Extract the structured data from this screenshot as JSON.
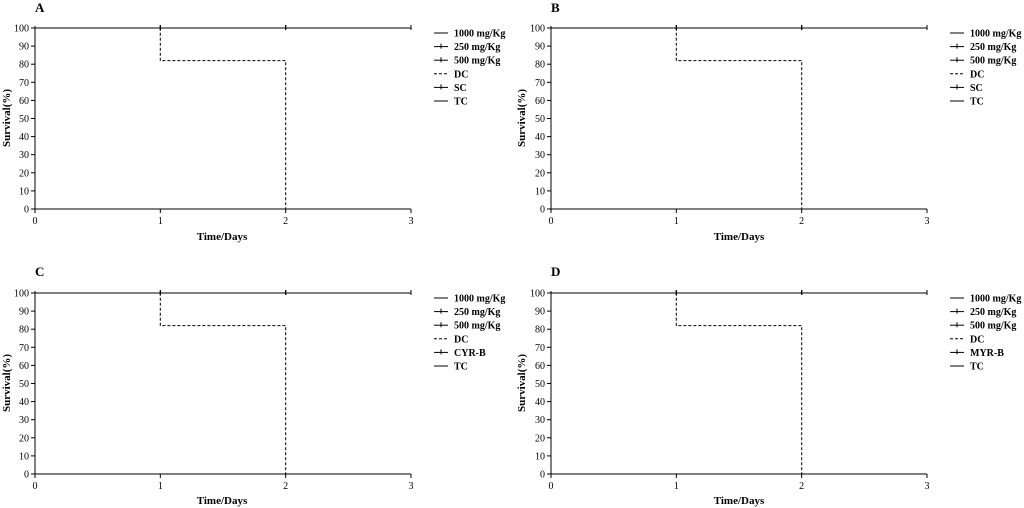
{
  "chart_data": [
    {
      "type": "line",
      "panel": "A",
      "xlabel": "Time/Days",
      "ylabel": "Survival(%)",
      "xlim": [
        0,
        3
      ],
      "ylim": [
        0,
        100
      ],
      "xticks": [
        0,
        1,
        2,
        3
      ],
      "yticks": [
        0,
        10,
        20,
        30,
        40,
        50,
        60,
        70,
        80,
        90,
        100
      ],
      "legend_position": "right",
      "series": [
        {
          "name": "1000 mg/Kg",
          "style": "solid",
          "x": [
            0,
            3
          ],
          "y": [
            100,
            100
          ]
        },
        {
          "name": "250 mg/Kg",
          "style": "solid-ticked",
          "x": [
            0,
            3
          ],
          "y": [
            100,
            100
          ]
        },
        {
          "name": "500 mg/Kg",
          "style": "solid-ticked",
          "x": [
            0,
            3
          ],
          "y": [
            100,
            100
          ]
        },
        {
          "name": "DC",
          "style": "dashed",
          "x": [
            0,
            1,
            1,
            2,
            2
          ],
          "y": [
            100,
            100,
            82,
            82,
            0
          ]
        },
        {
          "name": "SC",
          "style": "solid-ticked",
          "x": [
            0,
            3
          ],
          "y": [
            100,
            100
          ]
        },
        {
          "name": "TC",
          "style": "solid",
          "x": [
            0,
            3
          ],
          "y": [
            100,
            100
          ]
        }
      ]
    },
    {
      "type": "line",
      "panel": "B",
      "xlabel": "Time/Days",
      "ylabel": "Survival(%)",
      "xlim": [
        0,
        3
      ],
      "ylim": [
        0,
        100
      ],
      "xticks": [
        0,
        1,
        2,
        3
      ],
      "yticks": [
        0,
        10,
        20,
        30,
        40,
        50,
        60,
        70,
        80,
        90,
        100
      ],
      "legend_position": "right",
      "series": [
        {
          "name": "1000 mg/Kg",
          "style": "solid",
          "x": [
            0,
            3
          ],
          "y": [
            100,
            100
          ]
        },
        {
          "name": "250 mg/Kg",
          "style": "solid-ticked",
          "x": [
            0,
            3
          ],
          "y": [
            100,
            100
          ]
        },
        {
          "name": "500 mg/Kg",
          "style": "solid-ticked",
          "x": [
            0,
            3
          ],
          "y": [
            100,
            100
          ]
        },
        {
          "name": "DC",
          "style": "dashed",
          "x": [
            0,
            1,
            1,
            2,
            2
          ],
          "y": [
            100,
            100,
            82,
            82,
            0
          ]
        },
        {
          "name": "SC",
          "style": "solid-ticked",
          "x": [
            0,
            3
          ],
          "y": [
            100,
            100
          ]
        },
        {
          "name": "TC",
          "style": "solid",
          "x": [
            0,
            3
          ],
          "y": [
            100,
            100
          ]
        }
      ]
    },
    {
      "type": "line",
      "panel": "C",
      "xlabel": "Time/Days",
      "ylabel": "Survival(%)",
      "xlim": [
        0,
        3
      ],
      "ylim": [
        0,
        100
      ],
      "xticks": [
        0,
        1,
        2,
        3
      ],
      "yticks": [
        0,
        10,
        20,
        30,
        40,
        50,
        60,
        70,
        80,
        90,
        100
      ],
      "legend_position": "right",
      "series": [
        {
          "name": "1000 mg/Kg",
          "style": "solid",
          "x": [
            0,
            3
          ],
          "y": [
            100,
            100
          ]
        },
        {
          "name": "250 mg/Kg",
          "style": "solid-ticked",
          "x": [
            0,
            3
          ],
          "y": [
            100,
            100
          ]
        },
        {
          "name": "500 mg/Kg",
          "style": "solid-ticked",
          "x": [
            0,
            3
          ],
          "y": [
            100,
            100
          ]
        },
        {
          "name": "DC",
          "style": "dashed",
          "x": [
            0,
            1,
            1,
            2,
            2
          ],
          "y": [
            100,
            100,
            82,
            82,
            0
          ]
        },
        {
          "name": "CYR-B",
          "style": "solid-ticked",
          "x": [
            0,
            3
          ],
          "y": [
            100,
            100
          ]
        },
        {
          "name": "TC",
          "style": "solid",
          "x": [
            0,
            3
          ],
          "y": [
            100,
            100
          ]
        }
      ]
    },
    {
      "type": "line",
      "panel": "D",
      "xlabel": "Time/Days",
      "ylabel": "Survival(%)",
      "xlim": [
        0,
        3
      ],
      "ylim": [
        0,
        100
      ],
      "xticks": [
        0,
        1,
        2,
        3
      ],
      "yticks": [
        0,
        10,
        20,
        30,
        40,
        50,
        60,
        70,
        80,
        90,
        100
      ],
      "legend_position": "right",
      "series": [
        {
          "name": "1000 mg/Kg",
          "style": "solid",
          "x": [
            0,
            3
          ],
          "y": [
            100,
            100
          ]
        },
        {
          "name": "250 mg/Kg",
          "style": "solid-ticked",
          "x": [
            0,
            3
          ],
          "y": [
            100,
            100
          ]
        },
        {
          "name": "500 mg/Kg",
          "style": "solid-ticked",
          "x": [
            0,
            3
          ],
          "y": [
            100,
            100
          ]
        },
        {
          "name": "DC",
          "style": "dashed",
          "x": [
            0,
            1,
            1,
            2,
            2
          ],
          "y": [
            100,
            100,
            82,
            82,
            0
          ]
        },
        {
          "name": "MYR-B",
          "style": "solid-ticked",
          "x": [
            0,
            3
          ],
          "y": [
            100,
            100
          ]
        },
        {
          "name": "TC",
          "style": "solid",
          "x": [
            0,
            3
          ],
          "y": [
            100,
            100
          ]
        }
      ]
    }
  ]
}
